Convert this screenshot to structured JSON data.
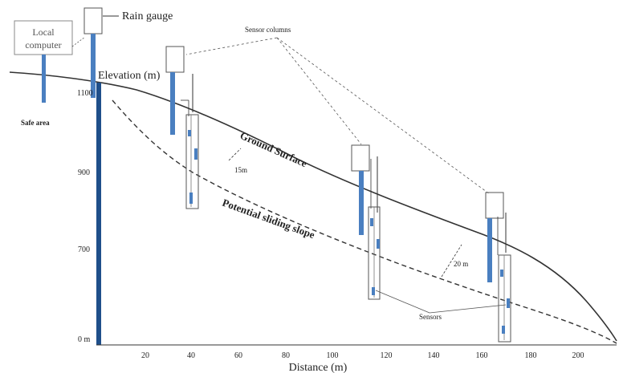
{
  "labels": {
    "local_computer_line1": "Local",
    "local_computer_line2": "computer",
    "rain_gauge": "Rain gauge",
    "sensor_columns": "Sensor columns",
    "elevation_axis": "Elevation (m)",
    "safe_area": "Safe area",
    "ground_surface": "Ground Surface",
    "potential_sliding_slope": "Potential sliding slope",
    "depth_15": "15m",
    "depth_20": "20 m",
    "sensors": "Sensors",
    "distance_axis": "Distance (m)"
  },
  "y_ticks": [
    "1100",
    "900",
    "700",
    "0 m"
  ],
  "x_ticks": [
    "20",
    "40",
    "60",
    "80",
    "100",
    "120",
    "140",
    "160",
    "180",
    "200"
  ],
  "colors": {
    "pole": "#4a7fc0",
    "axis_bar": "#1f4f8a",
    "line": "#333333"
  }
}
